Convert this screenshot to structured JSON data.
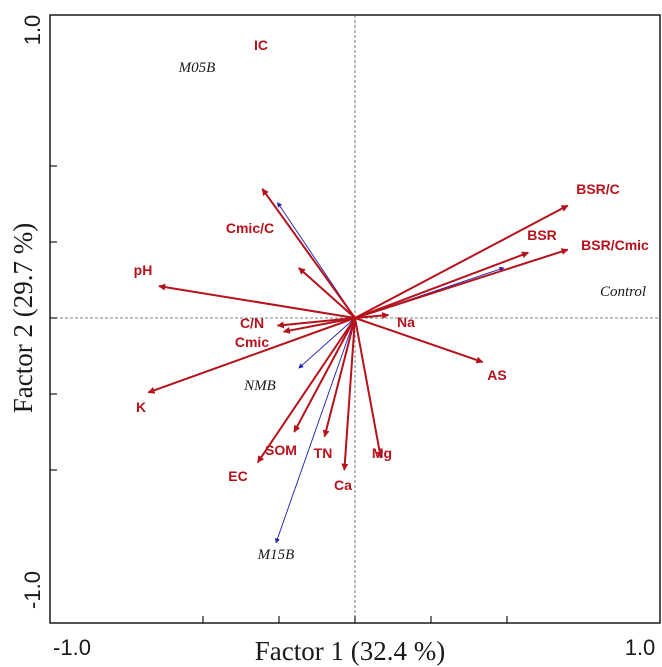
{
  "chart_data": {
    "type": "scatter",
    "subtype": "biplot",
    "title": "",
    "xlabel": "Factor 1 (32.4 %)",
    "ylabel": "Factor 2 (29.7 %)",
    "xlim": [
      -1.0,
      1.0
    ],
    "ylim": [
      -1.0,
      1.0
    ],
    "x_tick_labels": [
      "-1.0",
      "1.0"
    ],
    "y_tick_labels": [
      "-1.0",
      "1.0"
    ],
    "zero_lines": true,
    "colors": {
      "soil": "#b5121b",
      "treatment": "#1c1cb0",
      "axis": "#1a1a1a"
    },
    "soil_vectors": [
      {
        "label": "IC",
        "x": -0.61,
        "y": 0.85
      },
      {
        "label": "Cmic/C",
        "x": -0.37,
        "y": 0.33
      },
      {
        "label": "pH",
        "x": -1.29,
        "y": 0.21
      },
      {
        "label": "C/N",
        "x": -0.51,
        "y": -0.05
      },
      {
        "label": "Cmic",
        "x": -0.47,
        "y": -0.09
      },
      {
        "label": "K",
        "x": -1.36,
        "y": -0.49
      },
      {
        "label": "SOM",
        "x": -0.4,
        "y": -0.75
      },
      {
        "label": "EC",
        "x": -0.64,
        "y": -0.95
      },
      {
        "label": "TN",
        "x": -0.2,
        "y": -0.78
      },
      {
        "label": "Ca",
        "x": -0.07,
        "y": -1.0
      },
      {
        "label": "Mg",
        "x": 0.17,
        "y": -0.92
      },
      {
        "label": "Na",
        "x": 0.22,
        "y": 0.02
      },
      {
        "label": "AS",
        "x": 0.84,
        "y": -0.29
      },
      {
        "label": "BSR/C",
        "x": 1.4,
        "y": 0.74
      },
      {
        "label": "BSR",
        "x": 1.14,
        "y": 0.43
      },
      {
        "label": "BSR/Cmic",
        "x": 1.4,
        "y": 0.45
      }
    ],
    "treatment_vectors": [
      {
        "label": "M05B",
        "x": -0.51,
        "y": 0.76
      },
      {
        "label": "Control",
        "x": 0.98,
        "y": 0.33
      },
      {
        "label": "NMB",
        "x": -0.37,
        "y": -0.33
      },
      {
        "label": "M15B",
        "x": -0.52,
        "y": -1.48
      }
    ]
  }
}
